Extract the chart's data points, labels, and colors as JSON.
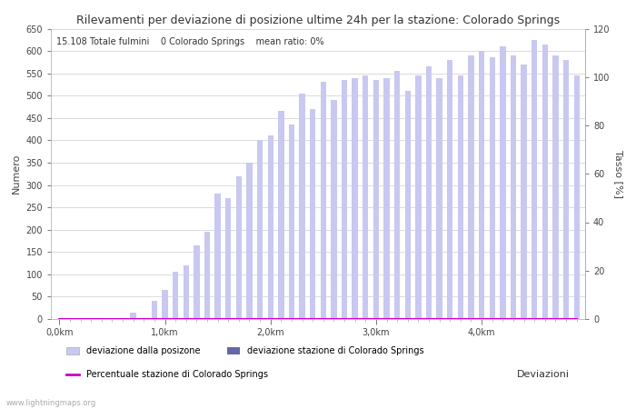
{
  "title": "Rilevamenti per deviazione di posizione ultime 24h per la stazione: Colorado Springs",
  "subtitle": "15.108 Totale fulmini    0 Colorado Springs    mean ratio: 0%",
  "xlabel": "Deviazioni",
  "ylabel_left": "Numero",
  "ylabel_right": "Tasso [%]",
  "background_color": "#ffffff",
  "grid_color": "#cccccc",
  "bar_color_light": "#c8c8f0",
  "bar_color_dark": "#6666aa",
  "line_color": "#cc00cc",
  "watermark": "www.lightningmaps.org",
  "ylim_left": [
    0,
    650
  ],
  "ylim_right": [
    0,
    120
  ],
  "yticks_left": [
    0,
    50,
    100,
    150,
    200,
    250,
    300,
    350,
    400,
    450,
    500,
    550,
    600,
    650
  ],
  "yticks_right": [
    0,
    20,
    40,
    60,
    80,
    100,
    120
  ],
  "bar_values": [
    0,
    0,
    0,
    0,
    0,
    0,
    0,
    15,
    0,
    40,
    65,
    105,
    120,
    165,
    195,
    280,
    270,
    320,
    350,
    400,
    410,
    465,
    435,
    505,
    470,
    530,
    490,
    535,
    540,
    545,
    535,
    540,
    555,
    510,
    545,
    565,
    540,
    580,
    545,
    590,
    600,
    585,
    610,
    590,
    570,
    625,
    615,
    590,
    580,
    545
  ],
  "station_bar_values": [
    0,
    0,
    0,
    0,
    0,
    0,
    0,
    0,
    0,
    0,
    0,
    0,
    0,
    0,
    0,
    0,
    0,
    0,
    0,
    0,
    0,
    0,
    0,
    0,
    0,
    0,
    0,
    0,
    0,
    0,
    0,
    0,
    0,
    0,
    0,
    0,
    0,
    0,
    0,
    0,
    0,
    0,
    0,
    0,
    0,
    0,
    0,
    0,
    0,
    0
  ],
  "percentage_values": [
    0,
    0,
    0,
    0,
    0,
    0,
    0,
    0,
    0,
    0,
    0,
    0,
    0,
    0,
    0,
    0,
    0,
    0,
    0,
    0,
    0,
    0,
    0,
    0,
    0,
    0,
    0,
    0,
    0,
    0,
    0,
    0,
    0,
    0,
    0,
    0,
    0,
    0,
    0,
    0,
    0,
    0,
    0,
    0,
    0,
    0,
    0,
    0,
    0,
    0
  ],
  "n_bars": 50,
  "legend_entries": [
    {
      "label": "deviazione dalla posizone",
      "color": "#c8c8f0",
      "type": "bar"
    },
    {
      "label": "deviazione stazione di Colorado Springs",
      "color": "#6666aa",
      "type": "bar"
    },
    {
      "label": "Percentuale stazione di Colorado Springs",
      "color": "#cc00cc",
      "type": "line"
    }
  ]
}
